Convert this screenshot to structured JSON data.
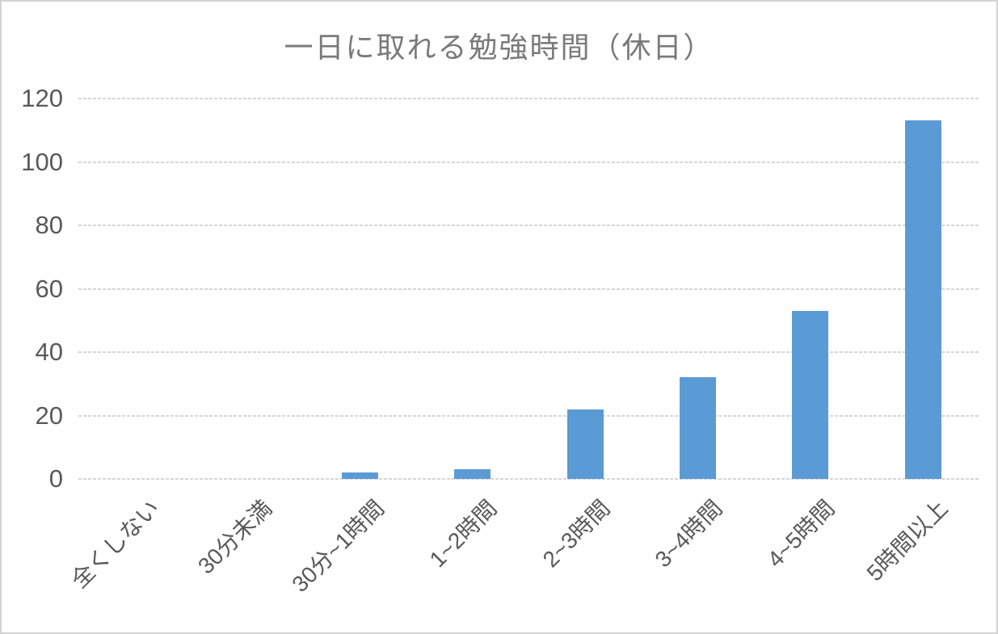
{
  "chart_data": {
    "type": "bar",
    "title": "一日に取れる勉強時間（休日）",
    "categories": [
      "全くしない",
      "30分未満",
      "30分~1時間",
      "1~2時間",
      "2~3時間",
      "3~4時間",
      "4~5時間",
      "5時間以上"
    ],
    "values": [
      0,
      0,
      2,
      3,
      22,
      32,
      53,
      113
    ],
    "xlabel": "",
    "ylabel": "",
    "ylim": [
      0,
      120
    ],
    "yticks": [
      0,
      20,
      40,
      60,
      80,
      100,
      120
    ],
    "grid": "horizontal",
    "legend_position": "none",
    "colors": {
      "bar": "#5B9BD5",
      "gridline": "#D9D9D9",
      "axis_text": "#595959",
      "title_text": "#7A7A7A",
      "frame_border": "#D2D2D2",
      "background": "#FFFFFF"
    }
  }
}
